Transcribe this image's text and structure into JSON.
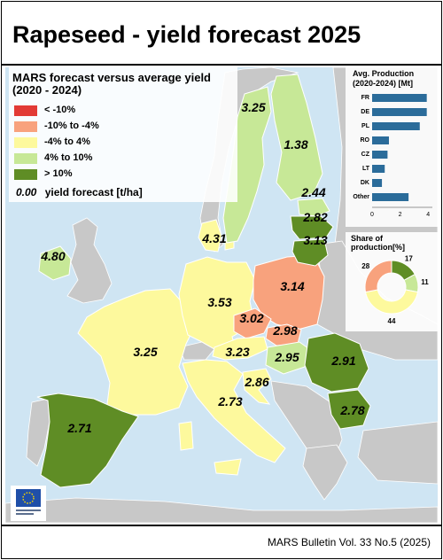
{
  "title": "Rapeseed - yield forecast 2025",
  "footer": "MARS Bulletin Vol. 33 No.5 (2025)",
  "legend": {
    "title": "MARS forecast versus average yield (2020 - 2024)",
    "classes": [
      {
        "label": "< -10%",
        "color": "#e23a35"
      },
      {
        "label": "-10% to -4%",
        "color": "#f8a27d"
      },
      {
        "label": "-4% to 4%",
        "color": "#fdf99d"
      },
      {
        "label": "4% to 10%",
        "color": "#c7e897"
      },
      {
        "label": "> 10%",
        "color": "#5f8d25"
      }
    ],
    "value_sample": "0.00",
    "value_label": "yield forecast [t/ha]"
  },
  "regions": [
    {
      "id": "FR",
      "value": "3.25",
      "class": 2
    },
    {
      "id": "ES",
      "value": "2.71",
      "class": 4
    },
    {
      "id": "IT",
      "value": "2.73",
      "class": 2
    },
    {
      "id": "DE",
      "value": "3.53",
      "class": 2
    },
    {
      "id": "PL",
      "value": "3.14",
      "class": 1
    },
    {
      "id": "CZ",
      "value": "3.02",
      "class": 1
    },
    {
      "id": "SK",
      "value": "2.98",
      "class": 1
    },
    {
      "id": "AT",
      "value": "3.23",
      "class": 2
    },
    {
      "id": "HU",
      "value": "2.95",
      "class": 3
    },
    {
      "id": "HR",
      "value": "2.86",
      "class": 2
    },
    {
      "id": "RO",
      "value": "2.91",
      "class": 4
    },
    {
      "id": "BG",
      "value": "2.78",
      "class": 4
    },
    {
      "id": "IE",
      "value": "4.80",
      "class": 3
    },
    {
      "id": "DK",
      "value": "4.31",
      "class": 2
    },
    {
      "id": "SE",
      "value": "3.25",
      "class": 3
    },
    {
      "id": "FI",
      "value": "1.38",
      "class": 3
    },
    {
      "id": "EE",
      "value": "2.44",
      "class": 3
    },
    {
      "id": "LV",
      "value": "2.82",
      "class": 4
    },
    {
      "id": "LT",
      "value": "3.13",
      "class": 4
    }
  ],
  "production": {
    "title_line1": "Avg. Production",
    "title_line2": "(2020-2024) [Mt]",
    "bar_color": "#2b6c9a",
    "items": [
      {
        "label": "FR",
        "value": 3.9
      },
      {
        "label": "DE",
        "value": 3.9
      },
      {
        "label": "PL",
        "value": 3.4
      },
      {
        "label": "RO",
        "value": 1.2
      },
      {
        "label": "CZ",
        "value": 1.1
      },
      {
        "label": "LT",
        "value": 0.9
      },
      {
        "label": "DK",
        "value": 0.7
      },
      {
        "label": "Other",
        "value": 2.6
      }
    ],
    "ticks": [
      "0",
      "2",
      "4"
    ],
    "xlim": [
      0,
      4.3
    ]
  },
  "share": {
    "title": "Share of production[%]",
    "slices": [
      {
        "value": 17,
        "color": "#5f8d25",
        "label": "17"
      },
      {
        "value": 11,
        "color": "#c7e897",
        "label": "11"
      },
      {
        "value": 44,
        "color": "#fdf99d",
        "label": "44"
      },
      {
        "value": 28,
        "color": "#f8a27d",
        "label": "28"
      }
    ]
  }
}
